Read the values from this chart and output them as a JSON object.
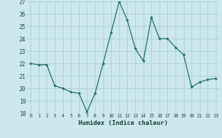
{
  "x": [
    0,
    1,
    2,
    3,
    4,
    5,
    6,
    7,
    8,
    9,
    10,
    11,
    12,
    13,
    14,
    15,
    16,
    17,
    18,
    19,
    20,
    21,
    22,
    23
  ],
  "y": [
    22,
    21.9,
    21.9,
    20.2,
    20.0,
    19.7,
    19.6,
    18.1,
    19.6,
    22.0,
    24.5,
    27.0,
    25.5,
    23.2,
    22.2,
    25.7,
    24.0,
    24.0,
    23.3,
    22.7,
    20.1,
    20.5,
    20.7,
    20.8
  ],
  "line_color": "#1a6b5a",
  "bg_color": "#cce8ec",
  "grid_color": "#aacdd4",
  "xlabel": "Humidex (Indice chaleur)",
  "ylim": [
    18,
    27
  ],
  "xlim": [
    -0.5,
    23.5
  ],
  "yticks": [
    18,
    19,
    20,
    21,
    22,
    23,
    24,
    25,
    26,
    27
  ],
  "xticks": [
    0,
    1,
    2,
    3,
    4,
    5,
    6,
    7,
    8,
    9,
    10,
    11,
    12,
    13,
    14,
    15,
    16,
    17,
    18,
    19,
    20,
    21,
    22,
    23
  ],
  "font_color": "#1a3a3a",
  "marker": "+"
}
